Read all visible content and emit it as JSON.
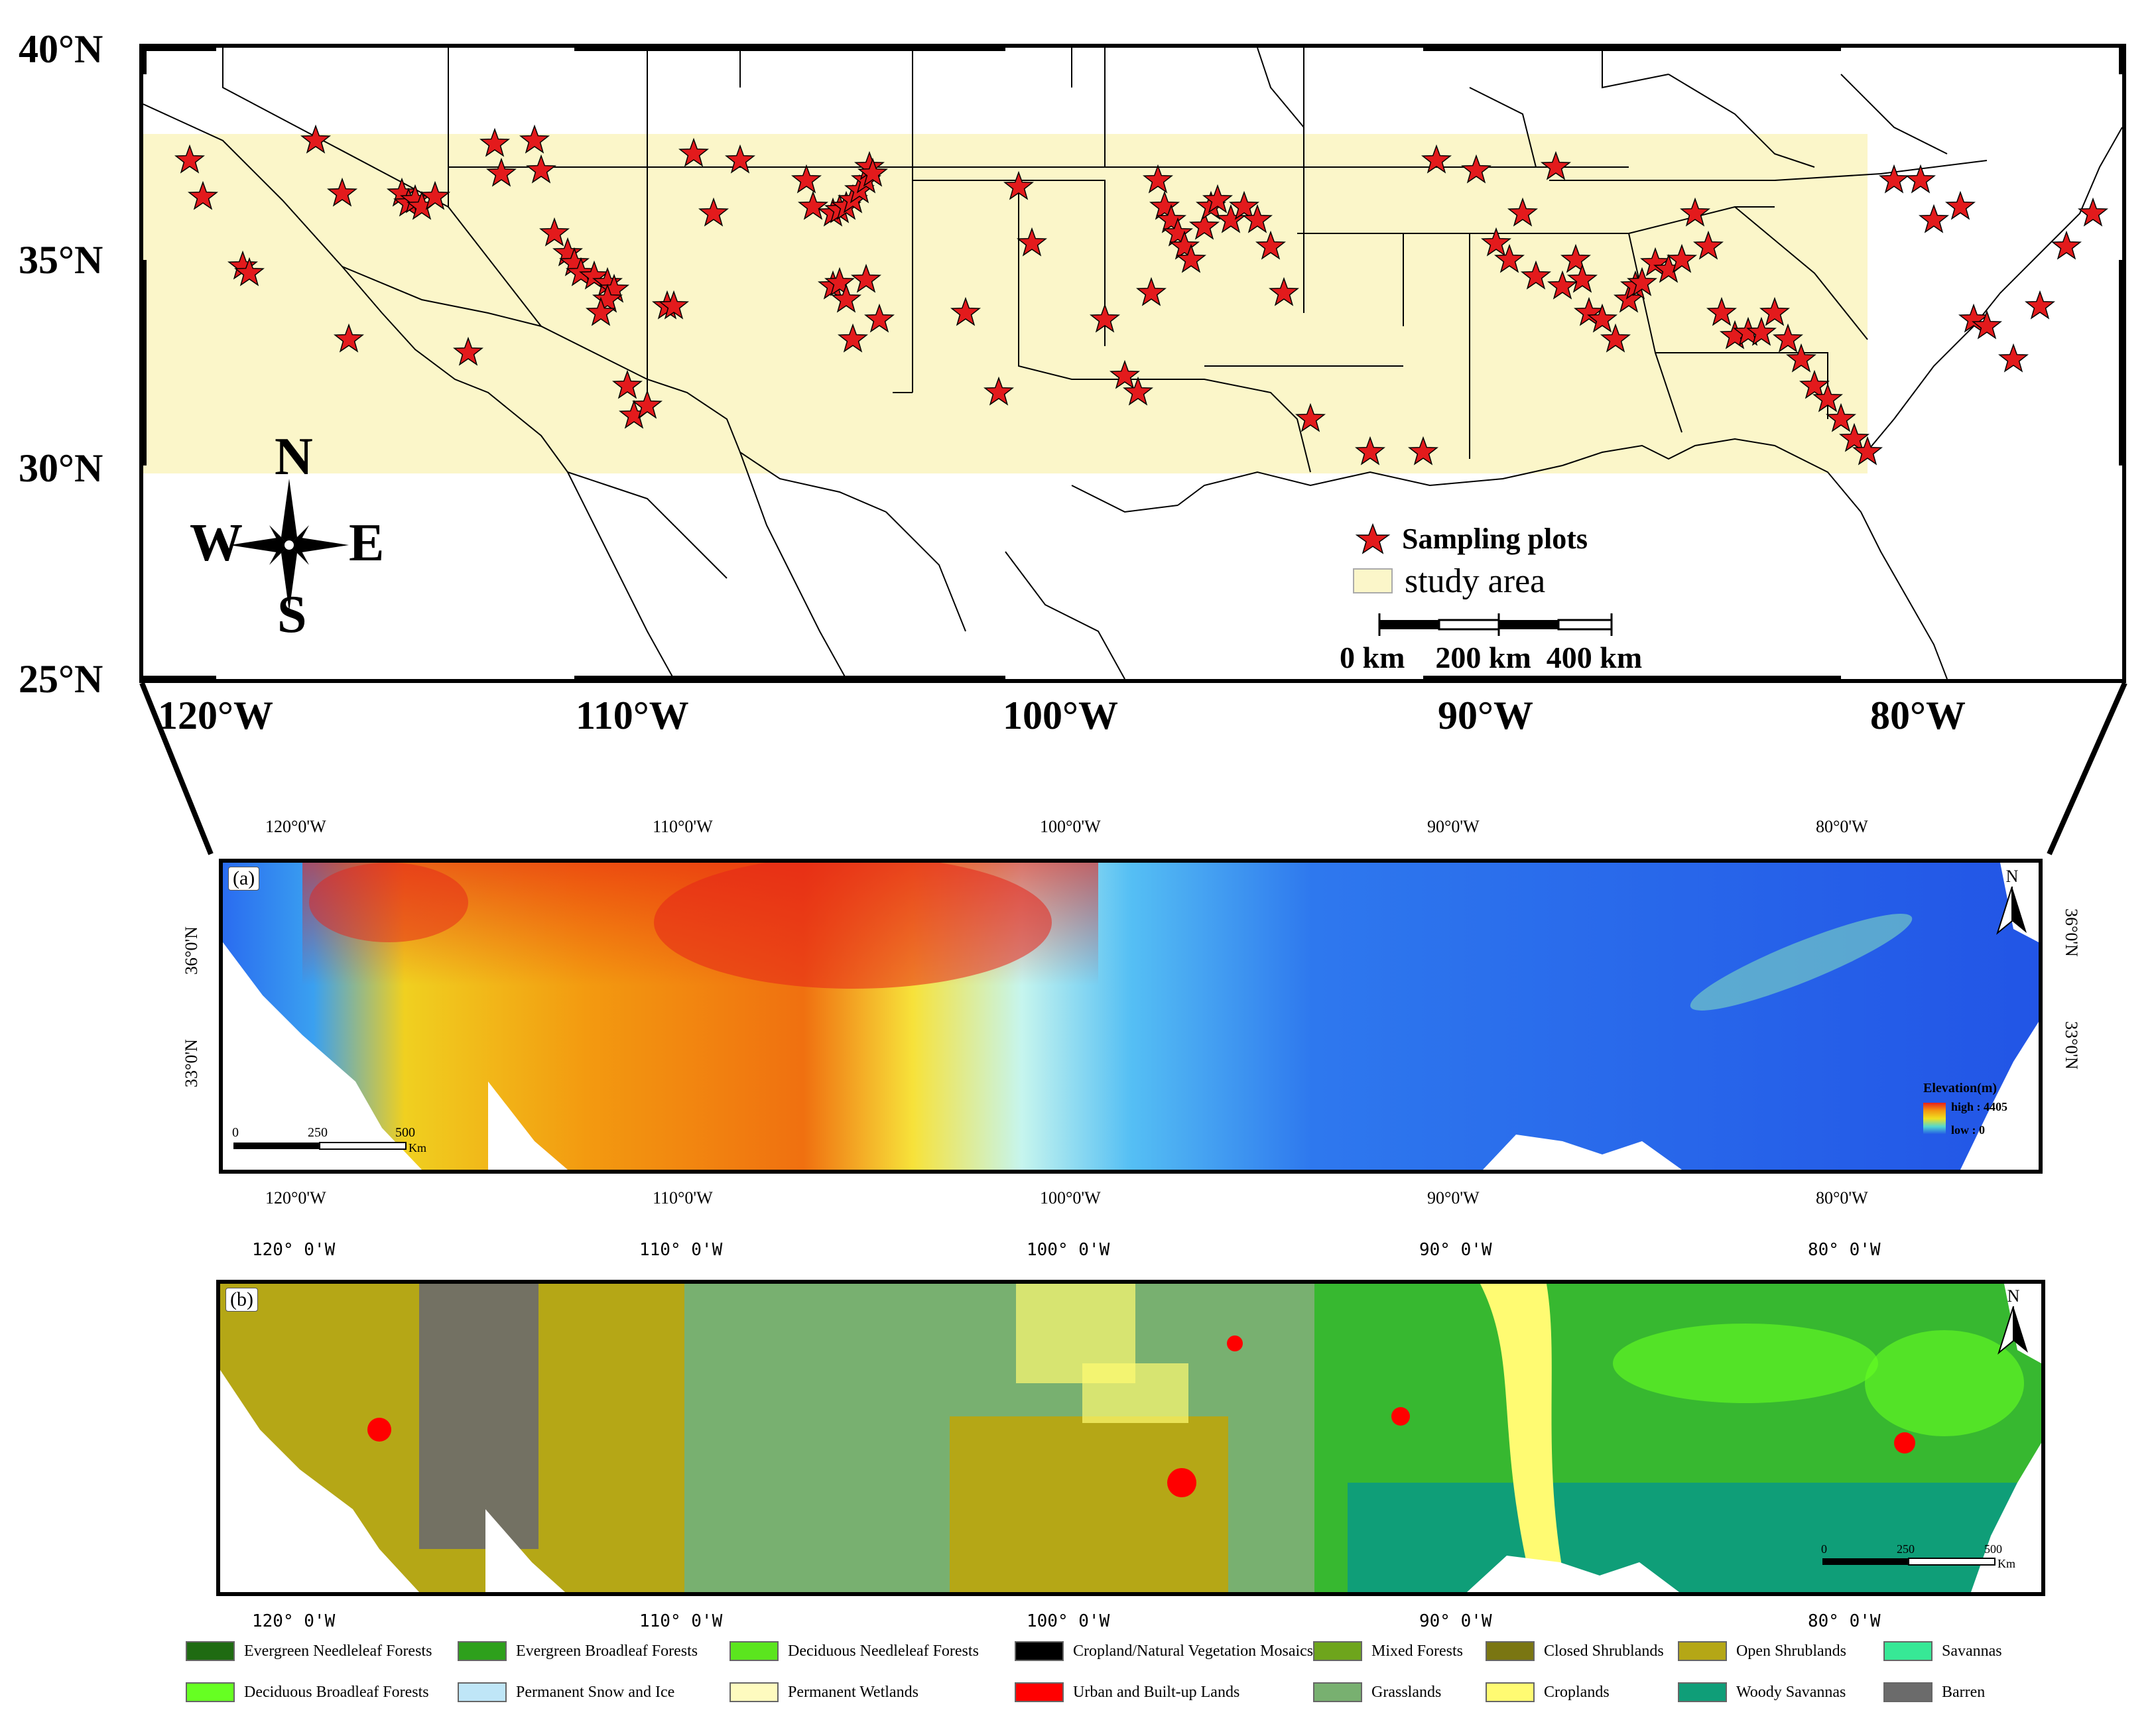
{
  "top_map": {
    "lat_labels": [
      "40°N",
      "35°N",
      "30°N",
      "25°N"
    ],
    "lon_labels": [
      "120°W",
      "110°W",
      "100°W",
      "90°W",
      "80°W"
    ],
    "compass": {
      "n": "N",
      "s": "S",
      "e": "E",
      "w": "W"
    },
    "legend": {
      "sampling_plots": "Sampling plots",
      "study_area": "study area"
    },
    "scalebar": {
      "labels": "0 km    200 km  400 km"
    },
    "colors": {
      "study_area": "#fbf6c9",
      "star": "#e31a1c",
      "boundary": "#000000"
    }
  },
  "panel_a": {
    "tag": "(a)",
    "lon_top": [
      "120°0'W",
      "110°0'W",
      "100°0'W",
      "90°0'W",
      "80°0'W"
    ],
    "lon_bottom": [
      "120°0'W",
      "110°0'W",
      "100°0'W",
      "90°0'W",
      "80°0'W"
    ],
    "lat_left": [
      "36°0'N",
      "33°0'N"
    ],
    "lat_right": [
      "36°0'N",
      "33°0'N"
    ],
    "north": "N",
    "scale": {
      "zero": "0",
      "mid": "250",
      "end": "500",
      "unit": "Km"
    },
    "elevation_legend": {
      "title": "Elevation(m)",
      "high": "high : 4405",
      "low": "low :  0"
    }
  },
  "panel_b": {
    "tag": "(b)",
    "lon_top": [
      "120°  0'W",
      "110°  0'W",
      "100°  0'W",
      "90°  0'W",
      "80°  0'W"
    ],
    "lon_bottom": [
      "120°  0'W",
      "110°  0'W",
      "100°  0'W",
      "90°  0'W",
      "80°  0'W"
    ],
    "north": "N",
    "scale": {
      "zero": "0",
      "mid": "250",
      "end": "500",
      "unit": "Km"
    }
  },
  "landcover_legend": [
    {
      "label": "Evergreen Needleleaf Forests",
      "color": "#1f6b12"
    },
    {
      "label": "Evergreen Broadleaf Forests",
      "color": "#2ea01c"
    },
    {
      "label": "Deciduous Needleleaf Forests",
      "color": "#5be51e"
    },
    {
      "label": "Cropland/Natural Vegetation Mosaics",
      "color": "#000000"
    },
    {
      "label": "Mixed Forests",
      "color": "#6ea51c"
    },
    {
      "label": "Closed Shrublands",
      "color": "#7a7612"
    },
    {
      "label": "Open Shrublands",
      "color": "#b5a716"
    },
    {
      "label": "Savannas",
      "color": "#37e896"
    },
    {
      "label": "Deciduous Broadleaf Forests",
      "color": "#66ff22"
    },
    {
      "label": "Permanent Snow and Ice",
      "color": "#bfe6f7"
    },
    {
      "label": "Permanent Wetlands",
      "color": "#fefbbf"
    },
    {
      "label": "Urban and Built-up Lands",
      "color": "#ff0000"
    },
    {
      "label": "Grasslands",
      "color": "#78b070"
    },
    {
      "label": "Croplands",
      "color": "#fffb72"
    },
    {
      "label": "Woody Savannas",
      "color": "#0f9e78"
    },
    {
      "label": "Barren",
      "color": "#6b6b6b"
    }
  ]
}
